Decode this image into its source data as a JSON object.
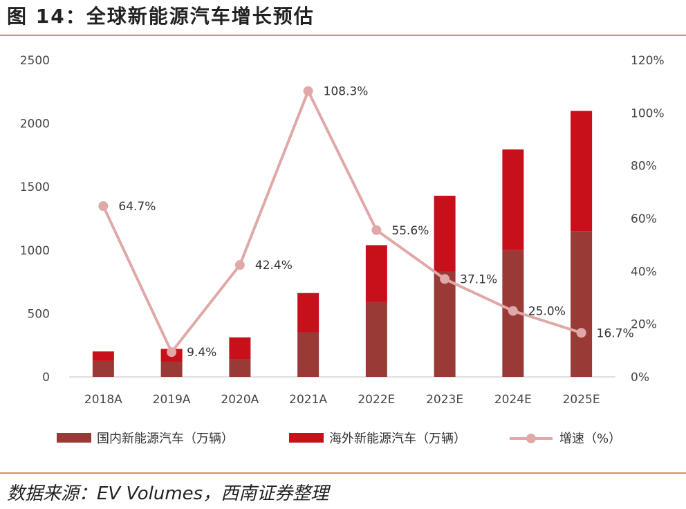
{
  "page": {
    "title": "图 14：全球新能源汽车增长预估",
    "source": "数据来源：EV Volumes，西南证券整理"
  },
  "colors": {
    "domestic": "#9a3a37",
    "overseas": "#c8101b",
    "growth": "#e0a8a7",
    "rule": "#c59a62"
  },
  "chart_data": {
    "type": "bar+line",
    "title": "全球新能源汽车增长预估",
    "categories": [
      "2018A",
      "2019A",
      "2020A",
      "2021A",
      "2022E",
      "2023E",
      "2024E",
      "2025E"
    ],
    "series": [
      {
        "name": "国内新能源汽车（万辆）",
        "kind": "stacked-bar",
        "axis": "left",
        "values": [
          126,
          120,
          137,
          352,
          590,
          830,
          1000,
          1150
        ]
      },
      {
        "name": "海外新能源汽车（万辆）",
        "kind": "stacked-bar",
        "axis": "left",
        "values": [
          75,
          101,
          175,
          310,
          450,
          600,
          795,
          950
        ]
      },
      {
        "name": "增速（%）",
        "kind": "line",
        "axis": "right",
        "values": [
          64.7,
          9.4,
          42.4,
          108.3,
          55.6,
          37.1,
          25.0,
          16.7
        ],
        "labels": [
          "64.7%",
          "9.4%",
          "42.4%",
          "108.3%",
          "55.6%",
          "37.1%",
          "25.0%",
          "16.7%"
        ]
      }
    ],
    "y_left": {
      "min": 0,
      "max": 2500,
      "ticks": [
        "0",
        "500",
        "1000",
        "1500",
        "2000",
        "2500"
      ]
    },
    "y_right": {
      "min": 0,
      "max": 120,
      "ticks": [
        "0%",
        "20%",
        "40%",
        "60%",
        "80%",
        "100%",
        "120%"
      ]
    },
    "legend": {
      "position": "bottom",
      "items": [
        "国内新能源汽车（万辆）",
        "海外新能源汽车（万辆）",
        "增速（%）"
      ]
    },
    "grid": false
  }
}
